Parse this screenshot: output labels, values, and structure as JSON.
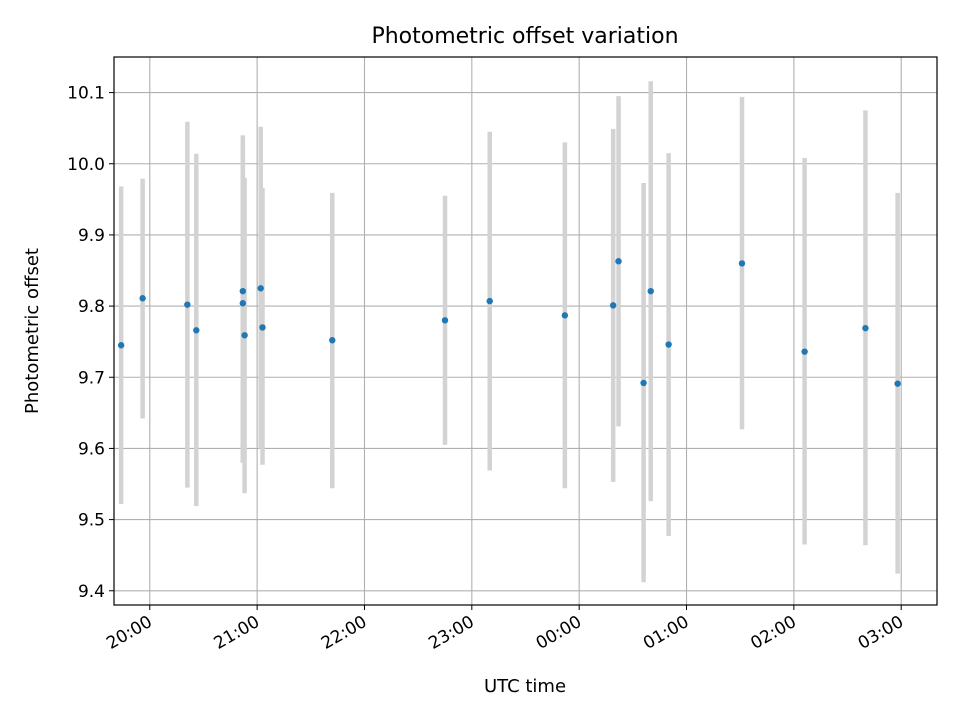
{
  "chart_data": {
    "type": "scatter",
    "title": "Photometric offset variation",
    "xlabel": "UTC time",
    "ylabel": "Photometric offset",
    "xlim": [
      "19:40",
      "03:20"
    ],
    "ylim": [
      9.38,
      10.15
    ],
    "grid": true,
    "x_ticks": [
      "20:00",
      "21:00",
      "22:00",
      "23:00",
      "00:00",
      "01:00",
      "02:00",
      "03:00"
    ],
    "y_ticks": [
      "9.4",
      "9.5",
      "9.6",
      "9.7",
      "9.8",
      "9.9",
      "10.0",
      "10.1"
    ],
    "marker_color": "#1f77b4",
    "errorbar_color": "#d3d3d3",
    "series": [
      {
        "points": [
          {
            "time": "19:44",
            "y": 9.745,
            "lo": 9.522,
            "hi": 9.968
          },
          {
            "time": "19:56",
            "y": 9.811,
            "lo": 9.642,
            "hi": 9.979
          },
          {
            "time": "20:21",
            "y": 9.802,
            "lo": 9.545,
            "hi": 10.059
          },
          {
            "time": "20:26",
            "y": 9.766,
            "lo": 9.519,
            "hi": 10.014
          },
          {
            "time": "20:52",
            "y": 9.821,
            "lo": 9.58,
            "hi": 10.04
          },
          {
            "time": "20:52",
            "y": 9.804,
            "lo": 9.58,
            "hi": 10.03
          },
          {
            "time": "20:53",
            "y": 9.759,
            "lo": 9.537,
            "hi": 9.98
          },
          {
            "time": "21:02",
            "y": 9.825,
            "lo": 9.6,
            "hi": 10.052
          },
          {
            "time": "21:03",
            "y": 9.77,
            "lo": 9.577,
            "hi": 9.966
          },
          {
            "time": "21:42",
            "y": 9.752,
            "lo": 9.544,
            "hi": 9.959
          },
          {
            "time": "22:45",
            "y": 9.78,
            "lo": 9.605,
            "hi": 9.955
          },
          {
            "time": "23:10",
            "y": 9.807,
            "lo": 9.569,
            "hi": 10.045
          },
          {
            "time": "23:52",
            "y": 9.787,
            "lo": 9.544,
            "hi": 10.03
          },
          {
            "time": "00:19",
            "y": 9.801,
            "lo": 9.553,
            "hi": 10.049
          },
          {
            "time": "00:22",
            "y": 9.863,
            "lo": 9.631,
            "hi": 10.095
          },
          {
            "time": "00:36",
            "y": 9.692,
            "lo": 9.412,
            "hi": 9.973
          },
          {
            "time": "00:40",
            "y": 9.821,
            "lo": 9.526,
            "hi": 10.116
          },
          {
            "time": "00:50",
            "y": 9.746,
            "lo": 9.477,
            "hi": 10.015
          },
          {
            "time": "01:31",
            "y": 9.86,
            "lo": 9.627,
            "hi": 10.094
          },
          {
            "time": "02:06",
            "y": 9.736,
            "lo": 9.465,
            "hi": 10.008
          },
          {
            "time": "02:40",
            "y": 9.769,
            "lo": 9.464,
            "hi": 10.075
          },
          {
            "time": "02:58",
            "y": 9.691,
            "lo": 9.424,
            "hi": 9.959
          }
        ]
      }
    ]
  }
}
